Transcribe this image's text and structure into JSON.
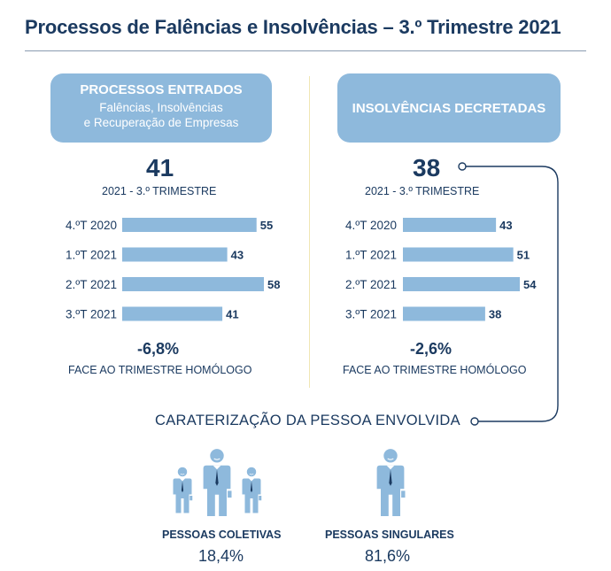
{
  "title": "Processos de Falências e Insolvências – 3.º Trimestre 2021",
  "left_panel": {
    "heading": "PROCESSOS ENTRADOS",
    "subheading_line1": "Falências, Insolvências",
    "subheading_line2": "e Recuperação de Empresas",
    "headline_value": "41",
    "headline_caption": "2021 - 3.º TRIMESTRE",
    "change": "-6,8%",
    "change_caption": "FACE AO TRIMESTRE HOMÓLOGO"
  },
  "right_panel": {
    "heading": "INSOLVÊNCIAS DECRETADAS",
    "headline_value": "38",
    "headline_caption": "2021 - 3.º TRIMESTRE",
    "change": "-2,6%",
    "change_caption": "FACE AO TRIMESTRE HOMÓLOGO"
  },
  "chart_data": [
    {
      "type": "bar",
      "orientation": "horizontal",
      "categories": [
        "4.ºT 2020",
        "1.ºT 2021",
        "2.ºT 2021",
        "3.ºT 2021"
      ],
      "values": [
        55,
        43,
        58,
        41
      ],
      "xlim": [
        0,
        58
      ],
      "grid": false,
      "color": "#8eb9dc"
    },
    {
      "type": "bar",
      "orientation": "horizontal",
      "categories": [
        "4.ºT 2020",
        "1.ºT 2021",
        "2.ºT 2021",
        "3.ºT 2021"
      ],
      "values": [
        43,
        51,
        54,
        38
      ],
      "xlim": [
        0,
        54
      ],
      "grid": false,
      "color": "#8eb9dc"
    }
  ],
  "characterization": {
    "heading": "CARATERIZAÇÃO DA PESSOA ENVOLVIDA",
    "collective": {
      "label": "PESSOAS COLETIVAS",
      "value": "18,4%",
      "icon": "group-of-people-icon"
    },
    "singular": {
      "label": "PESSOAS SINGULARES",
      "value": "81,6%",
      "icon": "person-icon"
    }
  },
  "colors": {
    "dark": "#1b3a60",
    "accent": "#8eb9dc",
    "divider": "#f0e6b4"
  }
}
